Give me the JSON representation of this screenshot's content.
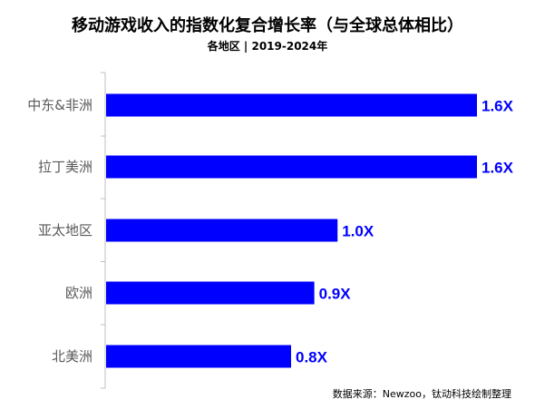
{
  "chart_data": {
    "type": "bar",
    "orientation": "horizontal",
    "title": "移动游戏收入的指数化复合增长率（与全球总体相比）",
    "subtitle": "各地区 | 2019-2024年",
    "categories": [
      "中东&非洲",
      "拉丁美洲",
      "亚太地区",
      "欧洲",
      "北美洲"
    ],
    "values": [
      1.6,
      1.6,
      1.0,
      0.9,
      0.8
    ],
    "data_labels": [
      "1.6X",
      "1.6X",
      "1.0X",
      "0.9X",
      "0.8X"
    ],
    "xlim": [
      0,
      1.6
    ],
    "grid": false,
    "legend": "none",
    "bar_color": "#0000FF",
    "label_color": "#0000FF",
    "source": "数据来源：Newzoo，钛动科技绘制整理"
  }
}
